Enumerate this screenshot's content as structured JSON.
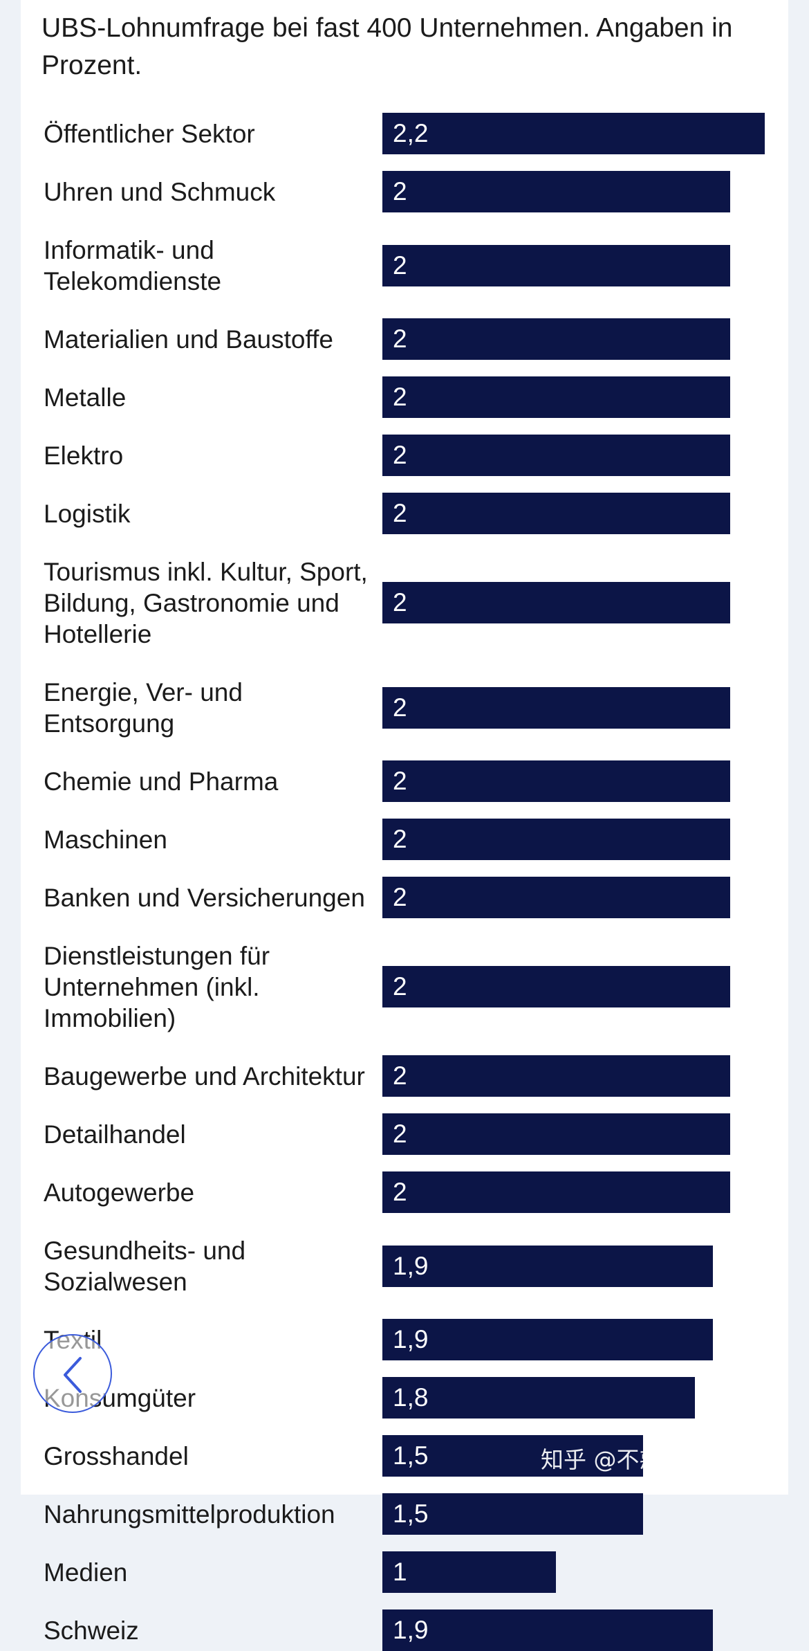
{
  "chart_data": {
    "type": "bar",
    "orientation": "horizontal",
    "subtitle": "UBS-Lohnumfrage bei fast 400 Unternehmen. Angaben in Prozent.",
    "categories": [
      "Öffentlicher Sektor",
      "Uhren und Schmuck",
      "Informatik- und Telekomdienste",
      "Materialien und Baustoffe",
      "Metalle",
      "Elektro",
      "Logistik",
      "Tourismus inkl. Kultur, Sport, Bildung, Gastronomie und Hotellerie",
      "Energie, Ver- und Entsorgung",
      "Chemie und Pharma",
      "Maschinen",
      "Banken und Versicherungen",
      "Dienstleistungen für Unternehmen (inkl. Immobilien)",
      "Baugewerbe und Architektur",
      "Detailhandel",
      "Autogewerbe",
      "Gesundheits- und Sozialwesen",
      "Textil",
      "Konsumgüter",
      "Grosshandel",
      "Nahrungsmittelproduktion",
      "Medien",
      "Schweiz"
    ],
    "values": [
      2.2,
      2,
      2,
      2,
      2,
      2,
      2,
      2,
      2,
      2,
      2,
      2,
      2,
      2,
      2,
      2,
      1.9,
      1.9,
      1.8,
      1.5,
      1.5,
      1,
      1.9
    ],
    "value_labels": [
      "2,2",
      "2",
      "2",
      "2",
      "2",
      "2",
      "2",
      "2",
      "2",
      "2",
      "2",
      "2",
      "2",
      "2",
      "2",
      "2",
      "1,9",
      "1,9",
      "1,8",
      "1,5",
      "1,5",
      "1",
      "1,9"
    ],
    "xlim": [
      0,
      2.2
    ],
    "bar_color": "#0c1547",
    "label_color": "#ffffff"
  },
  "overlay": {
    "watermark": "知乎 @不惑而惑在瑞士",
    "back_icon": "chevron-left-icon"
  }
}
